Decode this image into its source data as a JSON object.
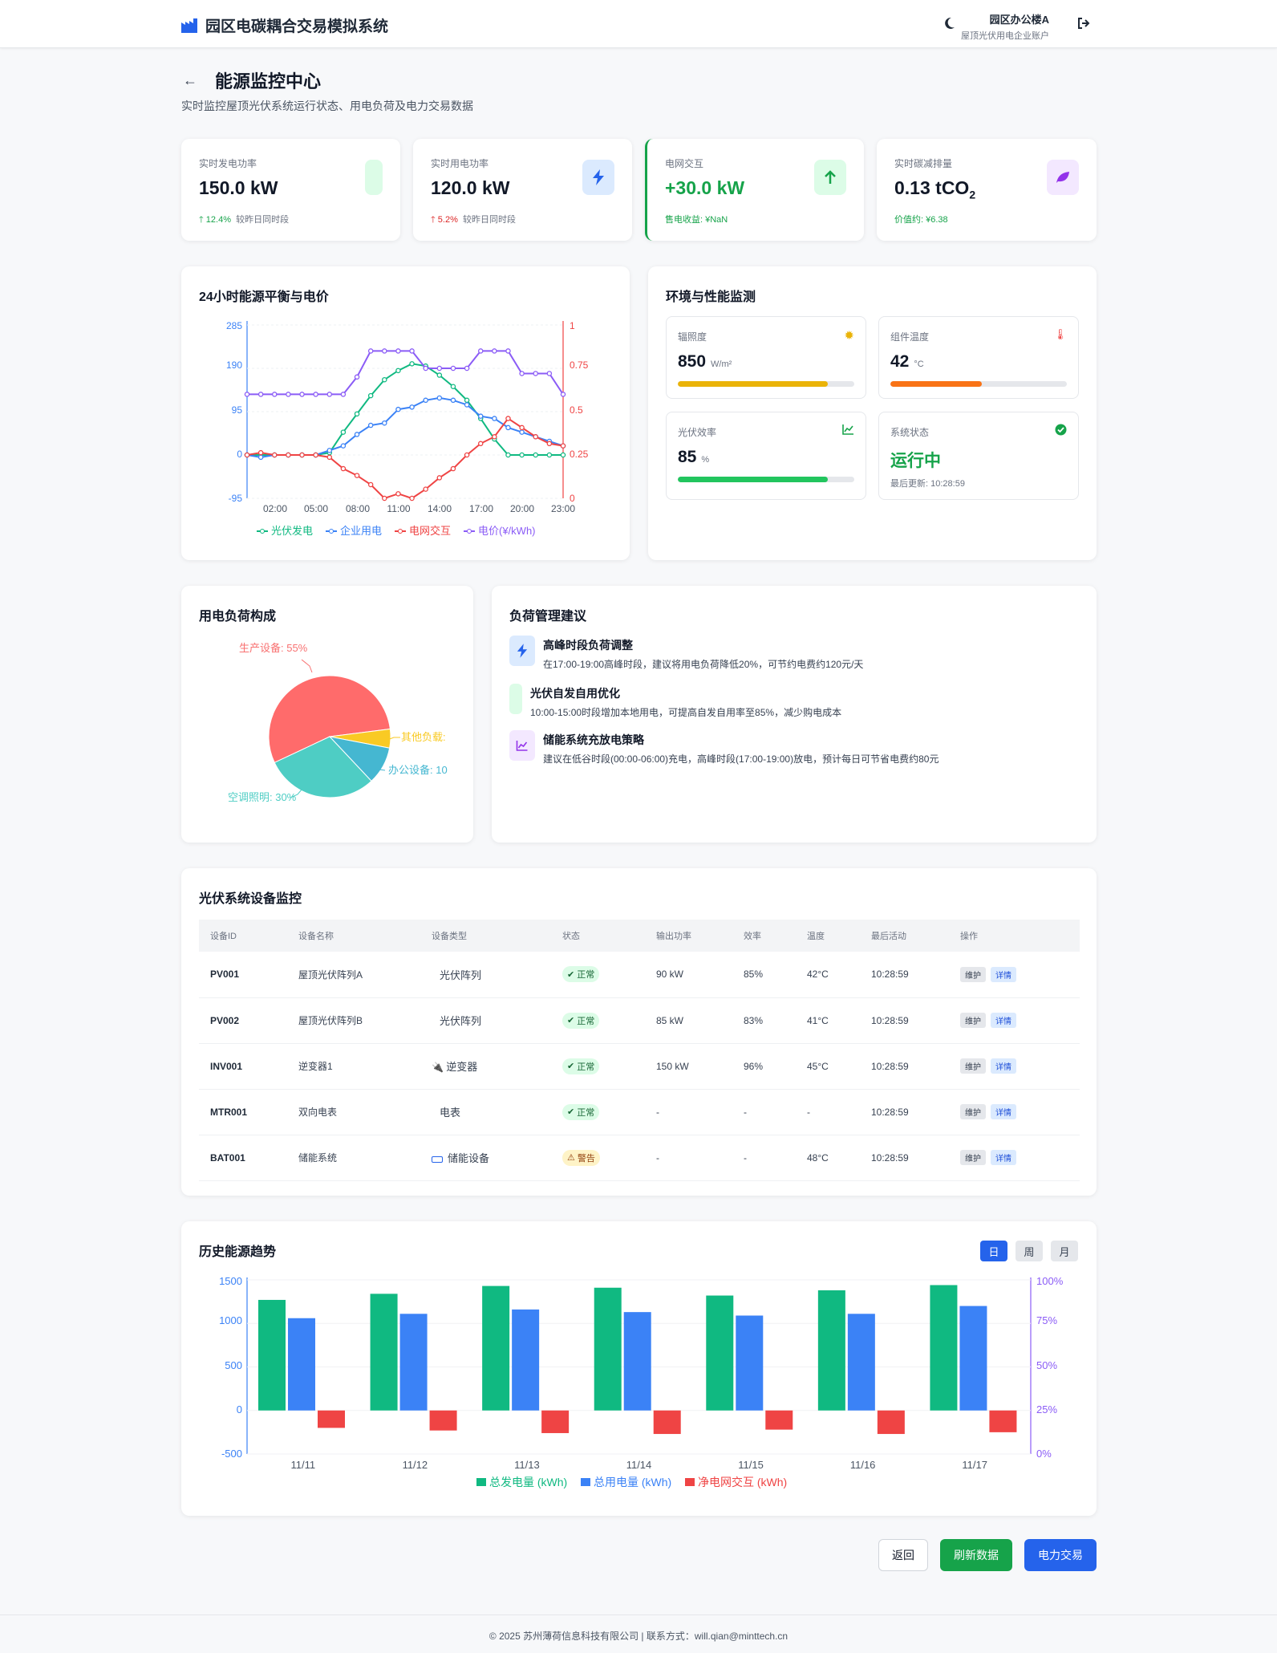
{
  "header": {
    "app_title": "园区电碳耦合交易模拟系统",
    "user_name": "园区办公楼A",
    "user_sub": "屋顶光伏用电企业账户"
  },
  "page": {
    "title": "能源监控中心",
    "subtitle": "实时监控屋顶光伏系统运行状态、用电负荷及电力交易数据"
  },
  "kpis": [
    {
      "label": "实时发电功率",
      "value": "150.0 kW",
      "change": "12.4%",
      "change_text": "较昨日同时段"
    },
    {
      "label": "实时用电功率",
      "value": "120.0 kW",
      "change": "5.2%",
      "change_text": "较昨日同时段"
    },
    {
      "label": "电网交互",
      "value": "+30.0 kW",
      "sub": "售电收益: ¥NaN"
    },
    {
      "label": "实时碳减排量",
      "value": "0.13 tCO",
      "value_sub": "2",
      "sub": "价值约: ¥6.38"
    }
  ],
  "energy_chart": {
    "title": "24小时能源平衡与电价",
    "y_left_ticks": [
      "285",
      "190",
      "95",
      "0",
      "-95"
    ],
    "y_right_ticks": [
      "1",
      "0.75",
      "0.5",
      "0.25",
      "0"
    ],
    "x_ticks": [
      "02:00",
      "05:00",
      "08:00",
      "11:00",
      "14:00",
      "17:00",
      "20:00",
      "23:00"
    ],
    "legend": [
      "光伏发电",
      "企业用电",
      "电网交互",
      "电价(¥/kWh)"
    ]
  },
  "env": {
    "title": "环境与性能监测",
    "irradiance": {
      "label": "辐照度",
      "value": "850",
      "unit": "W/m²",
      "level": 0.85
    },
    "temp": {
      "label": "组件温度",
      "value": "42",
      "unit": "°C",
      "level": 0.52
    },
    "efficiency": {
      "label": "光伏效率",
      "value": "85",
      "unit": "%",
      "level": 0.85
    },
    "status": {
      "label": "系统状态",
      "value": "运行中",
      "updated": "最后更新: 10:28:59"
    }
  },
  "load_pie": {
    "title": "用电负荷构成",
    "labels": [
      "生产设备: 55%",
      "空调照明: 30%",
      "办公设备: 10",
      "其他负载:"
    ]
  },
  "suggestions": {
    "title": "负荷管理建议",
    "items": [
      {
        "title": "高峰时段负荷调整",
        "desc": "在17:00-19:00高峰时段，建议将用电负荷降低20%，可节约电费约120元/天"
      },
      {
        "title": "光伏自发自用优化",
        "desc": "10:00-15:00时段增加本地用电，可提高自发自用率至85%，减少购电成本"
      },
      {
        "title": "储能系统充放电策略",
        "desc": "建议在低谷时段(00:00-06:00)充电，高峰时段(17:00-19:00)放电，预计每日可节省电费约80元"
      }
    ]
  },
  "devices": {
    "title": "光伏系统设备监控",
    "headers": [
      "设备ID",
      "设备名称",
      "设备类型",
      "状态",
      "输出功率",
      "效率",
      "温度",
      "最后活动",
      "操作"
    ],
    "rows": [
      {
        "id": "PV001",
        "name": "屋顶光伏阵列A",
        "type": "光伏阵列",
        "status": "正常",
        "power": "90 kW",
        "eff": "85%",
        "temp": "42°C",
        "last": "10:28:59"
      },
      {
        "id": "PV002",
        "name": "屋顶光伏阵列B",
        "type": "光伏阵列",
        "status": "正常",
        "power": "85 kW",
        "eff": "83%",
        "temp": "41°C",
        "last": "10:28:59"
      },
      {
        "id": "INV001",
        "name": "逆变器1",
        "type": "逆变器",
        "status": "正常",
        "power": "150 kW",
        "eff": "96%",
        "temp": "45°C",
        "last": "10:28:59"
      },
      {
        "id": "MTR001",
        "name": "双向电表",
        "type": "电表",
        "status": "正常",
        "power": "-",
        "eff": "-",
        "temp": "-",
        "last": "10:28:59"
      },
      {
        "id": "BAT001",
        "name": "储能系统",
        "type": "储能设备",
        "status": "警告",
        "power": "-",
        "eff": "-",
        "temp": "48°C",
        "last": "10:28:59"
      }
    ],
    "btn_maint": "维护",
    "btn_detail": "详情"
  },
  "history": {
    "title": "历史能源趋势",
    "tabs": [
      "日",
      "周",
      "月"
    ],
    "y_left_ticks": [
      "1500",
      "1000",
      "500",
      "0",
      "-500"
    ],
    "y_right_ticks": [
      "100%",
      "75%",
      "50%",
      "25%",
      "0%"
    ],
    "legend": [
      "总发电量 (kWh)",
      "总用电量 (kWh)",
      "净电网交互 (kWh)"
    ]
  },
  "actions": {
    "back": "返回",
    "refresh": "刷新数据",
    "trade": "电力交易"
  },
  "footer": "© 2025 苏州薄荷信息科技有限公司 | 联系方式：will.qian@minttech.cn",
  "colors": {
    "green": "#10b981",
    "blue": "#3b82f6",
    "red": "#ef4444",
    "purple": "#8b5cf6",
    "primary": "#2563eb",
    "success": "#16a34a"
  },
  "chart_data": [
    {
      "type": "line",
      "title": "24小时能源平衡与电价",
      "x": [
        "00:00",
        "01:00",
        "02:00",
        "03:00",
        "04:00",
        "05:00",
        "06:00",
        "07:00",
        "08:00",
        "09:00",
        "10:00",
        "11:00",
        "12:00",
        "13:00",
        "14:00",
        "15:00",
        "16:00",
        "17:00",
        "18:00",
        "19:00",
        "20:00",
        "21:00",
        "22:00",
        "23:00"
      ],
      "series": [
        {
          "name": "光伏发电",
          "axis": "left",
          "values": [
            0,
            0,
            0,
            0,
            0,
            0,
            5,
            50,
            90,
            130,
            165,
            185,
            200,
            195,
            175,
            150,
            120,
            80,
            35,
            0,
            0,
            0,
            0,
            0
          ]
        },
        {
          "name": "企业用电",
          "axis": "left",
          "values": [
            0,
            -5,
            0,
            0,
            0,
            0,
            10,
            20,
            45,
            65,
            70,
            100,
            105,
            120,
            125,
            120,
            110,
            85,
            80,
            60,
            50,
            40,
            30,
            20
          ]
        },
        {
          "name": "电网交互",
          "axis": "left",
          "values": [
            0,
            5,
            0,
            0,
            0,
            0,
            -5,
            -30,
            -45,
            -65,
            -95,
            -85,
            -95,
            -75,
            -50,
            -30,
            0,
            25,
            40,
            80,
            60,
            40,
            25,
            20
          ]
        },
        {
          "name": "电价(¥/kWh)",
          "axis": "right",
          "values": [
            0.6,
            0.6,
            0.6,
            0.6,
            0.6,
            0.6,
            0.6,
            0.6,
            0.7,
            0.85,
            0.85,
            0.85,
            0.85,
            0.75,
            0.75,
            0.75,
            0.75,
            0.85,
            0.85,
            0.85,
            0.72,
            0.72,
            0.72,
            0.6
          ]
        }
      ],
      "y_left_range": [
        -95,
        285
      ],
      "y_right_range": [
        0,
        1
      ]
    },
    {
      "type": "pie",
      "title": "用电负荷构成",
      "categories": [
        "生产设备",
        "空调照明",
        "办公设备",
        "其他负载"
      ],
      "values": [
        55,
        30,
        10,
        5
      ]
    },
    {
      "type": "bar",
      "title": "历史能源趋势",
      "categories": [
        "11/11",
        "11/12",
        "11/13",
        "11/14",
        "11/15",
        "11/16",
        "11/17"
      ],
      "series": [
        {
          "name": "总发电量 (kWh)",
          "values": [
            1270,
            1340,
            1430,
            1410,
            1320,
            1380,
            1440
          ]
        },
        {
          "name": "总用电量 (kWh)",
          "values": [
            1060,
            1110,
            1160,
            1130,
            1090,
            1110,
            1200
          ]
        },
        {
          "name": "净电网交互 (kWh)",
          "values": [
            -200,
            -230,
            -260,
            -270,
            -220,
            -270,
            -250
          ]
        }
      ],
      "y_left_range": [
        -500,
        1500
      ],
      "y_right_range": [
        "0%",
        "100%"
      ]
    }
  ]
}
